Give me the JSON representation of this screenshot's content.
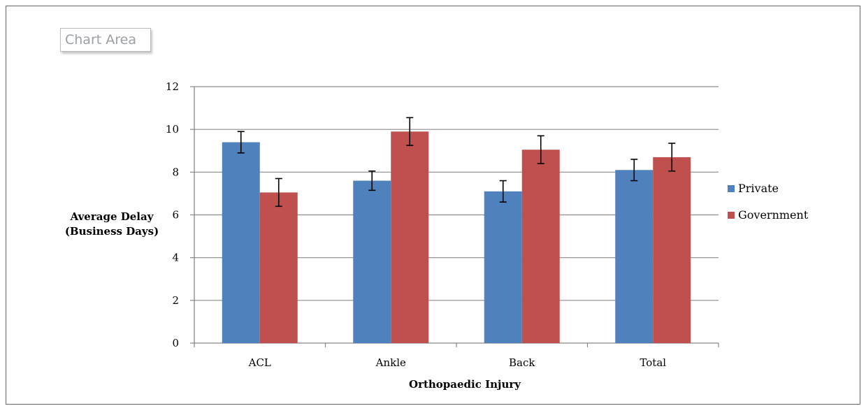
{
  "chart_area_label": "Chart Area",
  "colors": {
    "private": "#4f81bd",
    "government": "#c0504d",
    "grid": "#8c8c8c",
    "axis": "#868686"
  },
  "chart_data": {
    "type": "bar",
    "title": "",
    "categories": [
      "ACL",
      "Ankle",
      "Back",
      "Total"
    ],
    "series": [
      {
        "name": "Private",
        "values": [
          9.4,
          7.6,
          7.1,
          8.1
        ],
        "errors": [
          0.5,
          0.45,
          0.5,
          0.5
        ]
      },
      {
        "name": "Government",
        "values": [
          7.05,
          9.9,
          9.05,
          8.7
        ],
        "errors": [
          0.65,
          0.65,
          0.65,
          0.65
        ]
      }
    ],
    "xlabel": "Orthopaedic Injury",
    "ylabel": [
      "Average Delay",
      "(Business Days)"
    ],
    "ylim": [
      0,
      12
    ],
    "yticks": [
      0,
      2,
      4,
      6,
      8,
      10,
      12
    ],
    "grid": true,
    "legend": "right"
  }
}
